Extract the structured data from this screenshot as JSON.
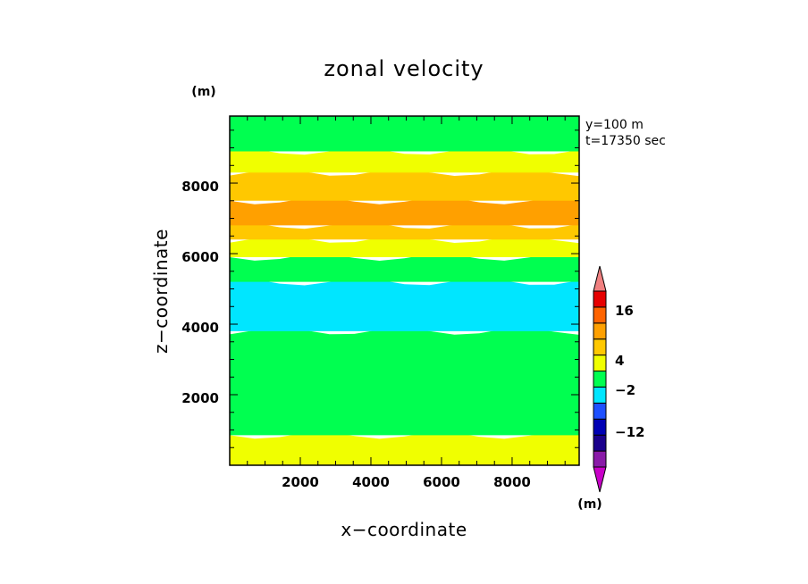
{
  "chart_data": {
    "type": "heatmap",
    "title": "zonal velocity",
    "xlabel": "x−coordinate",
    "ylabel": "z−coordinate",
    "x_unit": "(m)",
    "y_unit": "(m)",
    "annotations": [
      "y=100 m",
      "t=17350 sec"
    ],
    "xlim": [
      0,
      9900
    ],
    "ylim": [
      0,
      9900
    ],
    "x_ticks": [
      "2000",
      "4000",
      "6000",
      "8000"
    ],
    "y_ticks": [
      "2000",
      "4000",
      "6000",
      "8000"
    ],
    "colorbar": {
      "tick_labels": [
        "16",
        "4",
        "−2",
        "−12"
      ],
      "colors": [
        "#c800c8",
        "#8a1aa8",
        "#1a008c",
        "#0000b4",
        "#1e50ff",
        "#00e6ff",
        "#00ff50",
        "#f0ff00",
        "#ffc800",
        "#ffa000",
        "#ff6400",
        "#e60000",
        "#f08080"
      ]
    },
    "bands": [
      {
        "z_bottom": 0,
        "z_top": 850,
        "color": "#f0ff00",
        "category": "0 to 4"
      },
      {
        "z_bottom": 850,
        "z_top": 3800,
        "color": "#00ff50",
        "category": "-2 to 0"
      },
      {
        "z_bottom": 3800,
        "z_top": 5200,
        "color": "#00e6ff",
        "category": "-4 to -2"
      },
      {
        "z_bottom": 5200,
        "z_top": 5900,
        "color": "#00ff50",
        "category": "-2 to 0"
      },
      {
        "z_bottom": 5900,
        "z_top": 6400,
        "color": "#f0ff00",
        "category": "0 to 4"
      },
      {
        "z_bottom": 6400,
        "z_top": 6800,
        "color": "#ffc800",
        "category": "4 to 8"
      },
      {
        "z_bottom": 6800,
        "z_top": 7500,
        "color": "#ffa000",
        "category": "8 to 12"
      },
      {
        "z_bottom": 7500,
        "z_top": 8300,
        "color": "#ffc800",
        "category": "4 to 8"
      },
      {
        "z_bottom": 8300,
        "z_top": 8900,
        "color": "#f0ff00",
        "category": "0 to 4"
      },
      {
        "z_bottom": 8900,
        "z_top": 9900,
        "color": "#00ff50",
        "category": "-2 to 0"
      }
    ]
  }
}
